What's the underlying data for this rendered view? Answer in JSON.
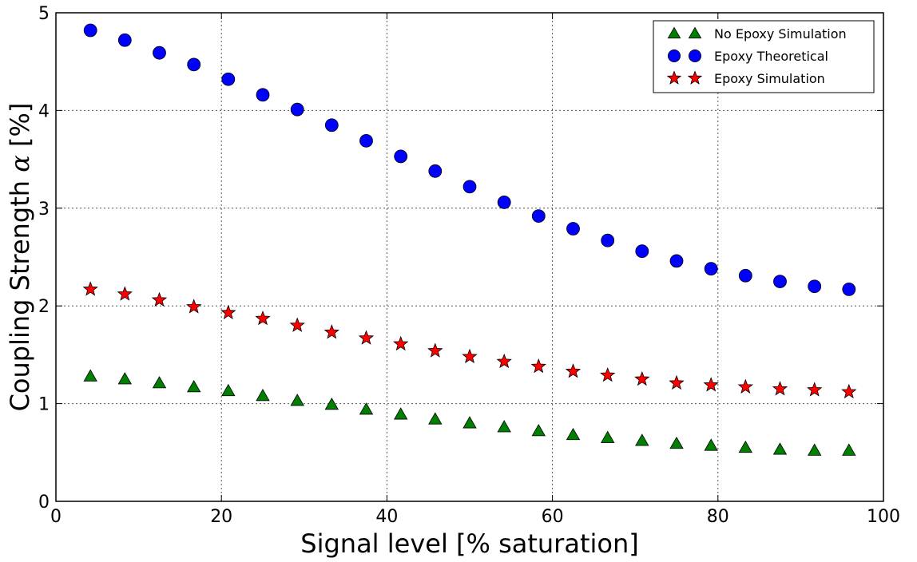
{
  "chart_data": {
    "type": "scatter",
    "title": "",
    "xlabel": "Signal level [% saturation]",
    "ylabel_text": "Coupling Strength ",
    "ylabel_symbol": "α",
    "ylabel_unit": " [%]",
    "xlim": [
      0,
      100
    ],
    "ylim": [
      0,
      5
    ],
    "xticks": [
      0,
      20,
      40,
      60,
      80,
      100
    ],
    "yticks": [
      0,
      1,
      2,
      3,
      4,
      5
    ],
    "grid": true,
    "legend_position": "top-right",
    "x": [
      4.17,
      8.33,
      12.5,
      16.67,
      20.83,
      25.0,
      29.17,
      33.33,
      37.5,
      41.67,
      45.83,
      50.0,
      54.17,
      58.33,
      62.5,
      66.67,
      70.83,
      75.0,
      79.17,
      83.33,
      87.5,
      91.67,
      95.83
    ],
    "series": [
      {
        "name": "No Epoxy Simulation",
        "marker": "triangle",
        "color": "#007f00",
        "values": [
          1.28,
          1.25,
          1.21,
          1.17,
          1.13,
          1.08,
          1.03,
          0.99,
          0.94,
          0.89,
          0.84,
          0.8,
          0.76,
          0.72,
          0.68,
          0.65,
          0.62,
          0.59,
          0.57,
          0.55,
          0.53,
          0.52,
          0.52
        ]
      },
      {
        "name": "Epoxy Theoretical",
        "marker": "circle",
        "color": "#0000ff",
        "values": [
          4.82,
          4.72,
          4.59,
          4.47,
          4.32,
          4.16,
          4.01,
          3.85,
          3.69,
          3.53,
          3.38,
          3.22,
          3.06,
          2.92,
          2.79,
          2.67,
          2.56,
          2.46,
          2.38,
          2.31,
          2.25,
          2.2,
          2.17
        ]
      },
      {
        "name": "Epoxy Simulation",
        "marker": "star",
        "color": "#ff0000",
        "values": [
          2.17,
          2.12,
          2.06,
          1.99,
          1.93,
          1.87,
          1.8,
          1.73,
          1.67,
          1.61,
          1.54,
          1.48,
          1.43,
          1.38,
          1.33,
          1.29,
          1.25,
          1.21,
          1.19,
          1.17,
          1.15,
          1.14,
          1.12
        ]
      }
    ]
  }
}
